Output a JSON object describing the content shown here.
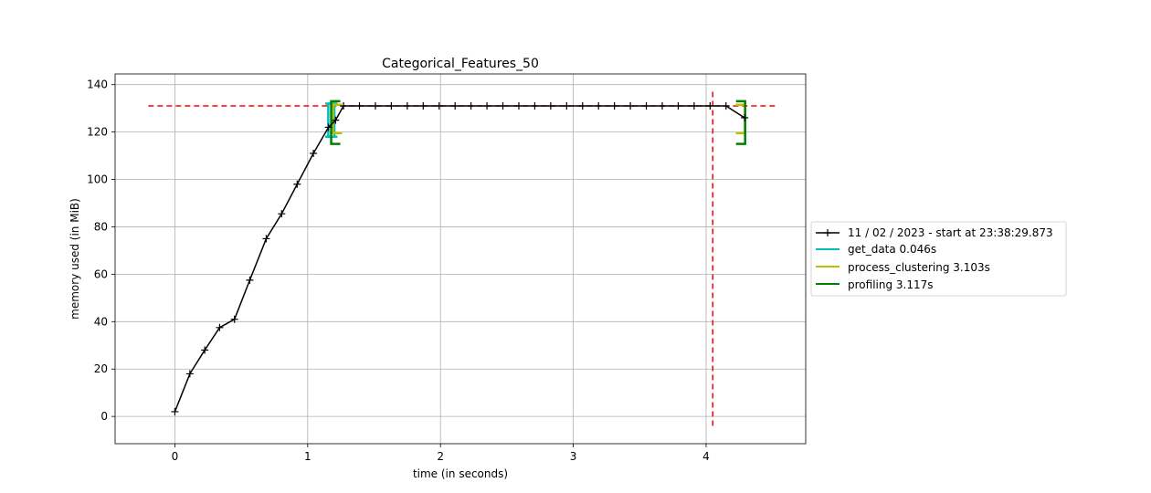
{
  "chart_data": {
    "type": "line",
    "title": "Categorical_Features_50",
    "xlabel": "time (in seconds)",
    "ylabel": "memory used (in MiB)",
    "xlim": [
      -0.45,
      4.75
    ],
    "ylim": [
      -11.5,
      144.5
    ],
    "xticks": [
      0,
      1,
      2,
      3,
      4
    ],
    "yticks": [
      0,
      20,
      40,
      60,
      80,
      100,
      120,
      140
    ],
    "grid": true,
    "legend_position": "center-right outside",
    "series": [
      {
        "name": "11 / 02 / 2023 - start at 23:38:29.873",
        "color": "#000000",
        "marker": "+",
        "x": [
          0.0,
          0.113,
          0.225,
          0.337,
          0.449,
          0.564,
          0.688,
          0.804,
          0.921,
          1.043,
          1.157,
          1.21,
          1.27,
          1.39,
          1.51,
          1.63,
          1.75,
          1.87,
          1.99,
          2.11,
          2.23,
          2.35,
          2.47,
          2.59,
          2.71,
          2.83,
          2.95,
          3.07,
          3.19,
          3.31,
          3.43,
          3.55,
          3.67,
          3.79,
          3.91,
          4.03,
          4.15,
          4.29
        ],
        "y": [
          2.0,
          18.0,
          28.0,
          37.5,
          41.0,
          57.5,
          75.0,
          85.5,
          98.0,
          111.0,
          122.0,
          125.0,
          131.0,
          131.0,
          131.0,
          131.0,
          131.0,
          131.0,
          131.0,
          131.0,
          131.0,
          131.0,
          131.0,
          131.0,
          131.0,
          131.0,
          131.0,
          131.0,
          131.0,
          131.0,
          131.0,
          131.0,
          131.0,
          131.0,
          131.0,
          131.0,
          131.0,
          126.0
        ]
      }
    ],
    "functions": [
      {
        "name": "get_data 0.046s",
        "color": "#00bfbf",
        "start": 1.155,
        "end": 1.201,
        "ymin": 118.0,
        "ymax": 132.0
      },
      {
        "name": "process_clustering 3.103s",
        "color": "#bfbf00",
        "start": 1.19,
        "end": 4.293,
        "ymin": 119.5,
        "ymax": 131.5
      },
      {
        "name": "profiling 3.117s",
        "color": "#008000",
        "start": 1.177,
        "end": 4.294,
        "ymin": 115.0,
        "ymax": 133.0
      }
    ],
    "reference_lines": {
      "color": "#ff0000",
      "horizontal": {
        "y": 131.0,
        "xmin": -0.2,
        "xmax": 4.52
      },
      "vertical": {
        "x": 4.05,
        "ymin": -4.0,
        "ymax": 137.0
      }
    }
  }
}
